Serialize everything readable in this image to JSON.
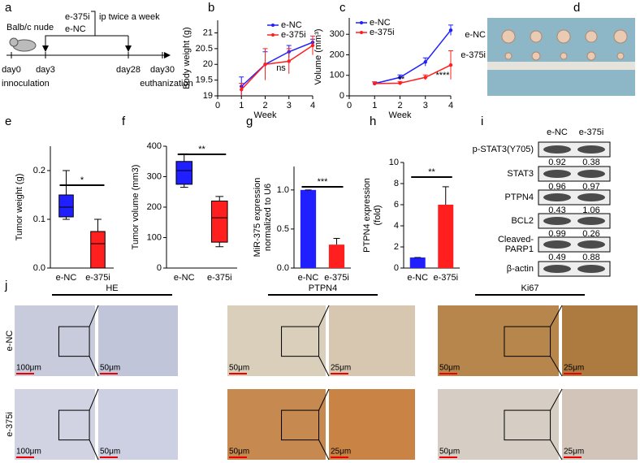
{
  "panel_labels": [
    "a",
    "b",
    "c",
    "d",
    "e",
    "f",
    "g",
    "h",
    "i",
    "j"
  ],
  "schema": {
    "mouse": "Balb/c nude",
    "groups": [
      "e-375i",
      "e-NC"
    ],
    "treatment": "ip twice a week",
    "days": [
      "day0",
      "day3",
      "day28",
      "day30"
    ],
    "events": [
      "innoculation",
      "euthanization"
    ]
  },
  "photo": {
    "rows": [
      "e-NC",
      "e-375i"
    ]
  },
  "chart_data": [
    {
      "type": "line",
      "ylabel": "Body weight (g)",
      "xlabel": "Week",
      "x": [
        1,
        2,
        3,
        4
      ],
      "xlim": [
        0,
        4
      ],
      "xticks": [
        0,
        1,
        2,
        3,
        4
      ],
      "ylim": [
        19,
        21.4
      ],
      "yticks": [
        19,
        19.5,
        20,
        20.5,
        21
      ],
      "legend": "upper right",
      "series": [
        {
          "name": "e-NC",
          "color": "#1f1fff",
          "values": [
            19.3,
            20.0,
            20.4,
            20.7
          ],
          "errors": [
            0.3,
            0.4,
            0.2,
            0.1
          ]
        },
        {
          "name": "e-375i",
          "color": "#ff1f1f",
          "values": [
            19.2,
            20.0,
            20.1,
            20.6
          ],
          "errors": [
            0.2,
            0.5,
            0.4,
            0.3
          ]
        }
      ],
      "annotations": [
        "ns"
      ]
    },
    {
      "type": "line",
      "ylabel": "Volume (mm³)",
      "xlabel": "Week",
      "x": [
        1,
        2,
        3,
        4
      ],
      "xlim": [
        0,
        4
      ],
      "xticks": [
        0,
        1,
        2,
        3,
        4
      ],
      "ylim": [
        0,
        380
      ],
      "yticks": [
        0,
        100,
        200,
        300
      ],
      "legend": "upper left",
      "series": [
        {
          "name": "e-NC",
          "color": "#1f1fff",
          "values": [
            60,
            90,
            165,
            320
          ],
          "errors": [
            8,
            12,
            20,
            25
          ]
        },
        {
          "name": "e-375i",
          "color": "#ff1f1f",
          "values": [
            60,
            62,
            90,
            150
          ],
          "errors": [
            8,
            8,
            12,
            70
          ]
        }
      ],
      "annotations": [
        "**",
        "****"
      ]
    },
    {
      "type": "box",
      "ylabel": "Tumor weight (g)",
      "categories": [
        "e-NC",
        "e-375i"
      ],
      "colors": [
        "#1f1fff",
        "#ff1f1f"
      ],
      "ylim": [
        0,
        0.25
      ],
      "yticks": [
        {
          "value": 0,
          "label": "0.0"
        },
        0.1,
        0.2
      ],
      "boxes": [
        {
          "whislo": 0.1,
          "q1": 0.105,
          "med": 0.125,
          "q3": 0.15,
          "whishi": 0.2
        },
        {
          "whislo": 0.0,
          "q1": 0.0,
          "med": 0.05,
          "q3": 0.075,
          "whishi": 0.1
        }
      ],
      "annotations": [
        "*"
      ]
    },
    {
      "type": "box",
      "ylabel": "Tumor volume (mm3)",
      "categories": [
        "e-NC",
        "e-375i"
      ],
      "colors": [
        "#1f1fff",
        "#ff1f1f"
      ],
      "ylim": [
        0,
        400
      ],
      "yticks": [
        0,
        100,
        200,
        300,
        400
      ],
      "boxes": [
        {
          "whislo": 265,
          "q1": 275,
          "med": 320,
          "q3": 350,
          "whishi": 375
        },
        {
          "whislo": 70,
          "q1": 85,
          "med": 165,
          "q3": 220,
          "whishi": 235
        }
      ],
      "annotations": [
        "**"
      ]
    },
    {
      "type": "bar",
      "ylabel": [
        "MiR-375 expression",
        "normalized to U6"
      ],
      "categories": [
        "e-NC",
        "e-375i"
      ],
      "colors": [
        "#1f1fff",
        "#ff1f1f"
      ],
      "ylim": [
        0,
        1.3
      ],
      "yticks": [
        {
          "value": 0,
          "label": "0.0"
        },
        0.5,
        {
          "value": 1,
          "label": "1.0"
        }
      ],
      "values": [
        1.0,
        0.3
      ],
      "errors": [
        0,
        0.08
      ],
      "annotations": [
        "***"
      ]
    },
    {
      "type": "bar",
      "ylabel": [
        "PTPN4 expression",
        "(fold)"
      ],
      "categories": [
        "e-NC",
        "e-375i"
      ],
      "colors": [
        "#1f1fff",
        "#ff1f1f"
      ],
      "ylim": [
        0,
        10
      ],
      "yticks": [
        0,
        2,
        4,
        6,
        8,
        10
      ],
      "values": [
        1,
        6
      ],
      "errors": [
        0,
        1.7
      ],
      "annotations": [
        "**"
      ]
    }
  ],
  "western_blot": {
    "columns": [
      "e-NC",
      "e-375i"
    ],
    "rows": [
      {
        "label": "p-STAT3(Y705)",
        "values": [
          0.92,
          0.38
        ]
      },
      {
        "label": "STAT3",
        "values": [
          0.96,
          0.97
        ]
      },
      {
        "label": "PTPN4",
        "values": [
          0.43,
          1.06
        ]
      },
      {
        "label": "BCL2",
        "values": [
          0.99,
          0.26
        ]
      },
      {
        "label": [
          "Cleaved-",
          "PARP1"
        ],
        "values": [
          0.49,
          0.88
        ]
      },
      {
        "label": "β-actin"
      }
    ]
  },
  "histology": {
    "rows": [
      "e-NC",
      "e-375i"
    ],
    "stains": [
      {
        "name": "HE",
        "scale_bars": [
          [
            "100μm",
            "50μm"
          ],
          [
            "100μm",
            "50μm"
          ]
        ]
      },
      {
        "name": "PTPN4",
        "scale_bars": [
          [
            "50μm",
            "25μm"
          ],
          [
            "50μm",
            "25μm"
          ]
        ]
      },
      {
        "name": "Ki67",
        "scale_bars": [
          [
            "50μm",
            "25μm"
          ],
          [
            "50μm",
            "25μm"
          ]
        ]
      }
    ]
  }
}
